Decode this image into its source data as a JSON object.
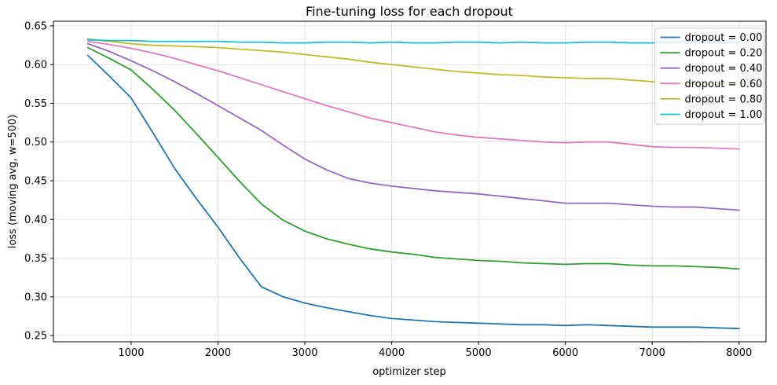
{
  "figure": {
    "background": "#ffffff",
    "spine_color": "#000000",
    "grid_color": "#e2e2e2",
    "text_color": "#000000"
  },
  "chart_data": {
    "type": "line",
    "title": "Fine-tuning loss for each dropout",
    "xlabel": "optimizer step",
    "ylabel": "loss (moving avg, w=500)",
    "xlim": [
      105,
      8310
    ],
    "ylim": [
      0.242,
      0.656
    ],
    "x_ticks": [
      1000,
      2000,
      3000,
      4000,
      5000,
      6000,
      7000,
      8000
    ],
    "y_ticks": [
      0.25,
      0.3,
      0.35,
      0.4,
      0.45,
      0.5,
      0.55,
      0.6,
      0.65
    ],
    "grid": true,
    "legend_position": "upper right",
    "legend_framealpha": 0.8,
    "x": [
      500,
      750,
      1000,
      1250,
      1500,
      1750,
      2000,
      2250,
      2500,
      2750,
      3000,
      3250,
      3500,
      3750,
      4000,
      4250,
      4500,
      4750,
      5000,
      5250,
      5500,
      5750,
      6000,
      6250,
      6500,
      6750,
      7000,
      7250,
      7500,
      7750,
      8000
    ],
    "series": [
      {
        "name": "dropout = 0.00",
        "color": "#1f77b4",
        "values": [
          0.612,
          0.585,
          0.557,
          0.512,
          0.466,
          0.427,
          0.39,
          0.35,
          0.313,
          0.3,
          0.292,
          0.286,
          0.281,
          0.276,
          0.272,
          0.27,
          0.268,
          0.267,
          0.266,
          0.265,
          0.264,
          0.264,
          0.263,
          0.264,
          0.263,
          0.262,
          0.261,
          0.261,
          0.261,
          0.26,
          0.259
        ]
      },
      {
        "name": "dropout = 0.20",
        "color": "#2ca02c",
        "values": [
          0.622,
          0.608,
          0.593,
          0.568,
          0.541,
          0.511,
          0.48,
          0.449,
          0.42,
          0.399,
          0.385,
          0.375,
          0.368,
          0.362,
          0.358,
          0.355,
          0.351,
          0.349,
          0.347,
          0.346,
          0.344,
          0.343,
          0.342,
          0.343,
          0.343,
          0.341,
          0.34,
          0.34,
          0.339,
          0.338,
          0.336
        ]
      },
      {
        "name": "dropout = 0.40",
        "color": "#9467bd",
        "values": [
          0.627,
          0.617,
          0.605,
          0.592,
          0.578,
          0.563,
          0.547,
          0.531,
          0.515,
          0.496,
          0.478,
          0.464,
          0.453,
          0.447,
          0.443,
          0.44,
          0.437,
          0.435,
          0.433,
          0.43,
          0.427,
          0.424,
          0.421,
          0.421,
          0.421,
          0.419,
          0.417,
          0.416,
          0.416,
          0.414,
          0.412
        ]
      },
      {
        "name": "dropout = 0.60",
        "color": "#e377c2",
        "values": [
          0.63,
          0.626,
          0.621,
          0.615,
          0.608,
          0.6,
          0.592,
          0.583,
          0.574,
          0.565,
          0.556,
          0.547,
          0.539,
          0.531,
          0.525,
          0.519,
          0.513,
          0.509,
          0.506,
          0.504,
          0.502,
          0.5,
          0.499,
          0.5,
          0.5,
          0.497,
          0.494,
          0.493,
          0.493,
          0.492,
          0.491
        ]
      },
      {
        "name": "dropout = 0.80",
        "color": "#bcbd22",
        "values": [
          0.633,
          0.63,
          0.627,
          0.625,
          0.624,
          0.623,
          0.622,
          0.62,
          0.618,
          0.616,
          0.613,
          0.61,
          0.607,
          0.603,
          0.6,
          0.597,
          0.594,
          0.591,
          0.589,
          0.587,
          0.586,
          0.584,
          0.583,
          0.582,
          0.582,
          0.58,
          0.578,
          0.576,
          0.575,
          0.575,
          0.575
        ]
      },
      {
        "name": "dropout = 1.00",
        "color": "#17becf",
        "values": [
          0.632,
          0.631,
          0.631,
          0.63,
          0.63,
          0.63,
          0.63,
          0.629,
          0.629,
          0.628,
          0.628,
          0.629,
          0.629,
          0.628,
          0.629,
          0.628,
          0.628,
          0.629,
          0.629,
          0.628,
          0.629,
          0.628,
          0.628,
          0.629,
          0.629,
          0.628,
          0.628,
          0.629,
          0.63,
          0.629,
          0.628
        ]
      }
    ]
  }
}
